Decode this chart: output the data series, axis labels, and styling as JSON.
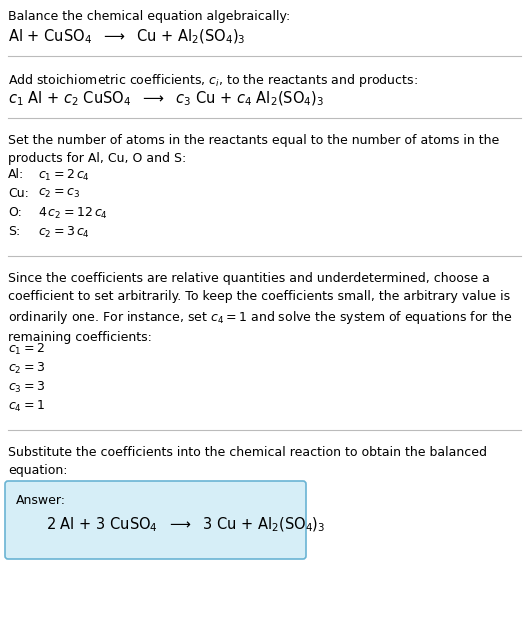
{
  "bg_color": "#ffffff",
  "text_color": "#000000",
  "line_color": "#bbbbbb",
  "answer_box_color": "#d6eef7",
  "answer_box_edge": "#6ab4d4",
  "section1_title": "Balance the chemical equation algebraically:",
  "section1_eq": "Al + CuSO$_4$  $\\longrightarrow$  Cu + Al$_2$(SO$_4$)$_3$",
  "section2_title": "Add stoichiometric coefficients, $c_i$, to the reactants and products:",
  "section2_eq": "$c_1$ Al + $c_2$ CuSO$_4$  $\\longrightarrow$  $c_3$ Cu + $c_4$ Al$_2$(SO$_4$)$_3$",
  "section3_title": "Set the number of atoms in the reactants equal to the number of atoms in the\nproducts for Al, Cu, O and S:",
  "section3_lines": [
    [
      "Al:",
      "$c_1 = 2\\,c_4$"
    ],
    [
      "Cu:",
      "$c_2 = c_3$"
    ],
    [
      "O:",
      "$4\\,c_2 = 12\\,c_4$"
    ],
    [
      "S:",
      "$c_2 = 3\\,c_4$"
    ]
  ],
  "section4_title": "Since the coefficients are relative quantities and underdetermined, choose a\ncoefficient to set arbitrarily. To keep the coefficients small, the arbitrary value is\nordinarily one. For instance, set $c_4 = 1$ and solve the system of equations for the\nremaining coefficients:",
  "section4_lines": [
    "$c_1 = 2$",
    "$c_2 = 3$",
    "$c_3 = 3$",
    "$c_4 = 1$"
  ],
  "section5_title": "Substitute the coefficients into the chemical reaction to obtain the balanced\nequation:",
  "answer_label": "Answer:",
  "answer_eq": "2 Al + 3 CuSO$_4$  $\\longrightarrow$  3 Cu + Al$_2$(SO$_4$)$_3$",
  "fs_body": 9.0,
  "fs_eq": 10.5,
  "fs_answer": 10.5
}
